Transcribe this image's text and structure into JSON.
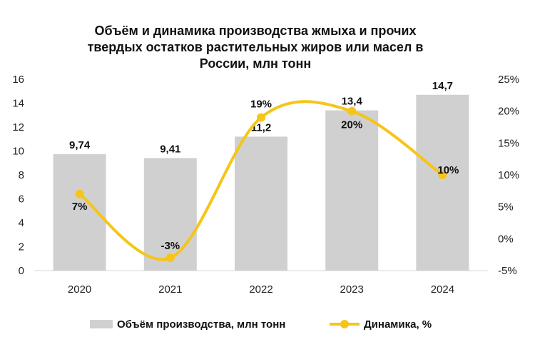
{
  "chart_data": {
    "type": "bar",
    "title_lines": [
      "Объём и динамика производства жмыха и прочих",
      "твердых остатков растительных жиров или масел в",
      "России, млн тонн"
    ],
    "categories": [
      "2020",
      "2021",
      "2022",
      "2023",
      "2024"
    ],
    "series": [
      {
        "name": "Объём производства, млн тонн",
        "type": "bar",
        "axis": "left",
        "values": [
          9.74,
          9.41,
          11.2,
          13.4,
          14.7
        ],
        "labels": [
          "9,74",
          "9,41",
          "11,2",
          "13,4",
          "14,7"
        ],
        "color": "#d0d0d0"
      },
      {
        "name": "Динамика, %",
        "type": "line",
        "axis": "right",
        "values": [
          7,
          -3,
          19,
          20,
          10
        ],
        "labels": [
          "7%",
          "-3%",
          "19%",
          "20%",
          "10%"
        ],
        "color": "#f5c518"
      }
    ],
    "y_left": {
      "min": 0,
      "max": 16,
      "ticks": [
        "0",
        "2",
        "4",
        "6",
        "8",
        "10",
        "12",
        "14",
        "16"
      ]
    },
    "y_right": {
      "min": -5,
      "max": 25,
      "ticks": [
        "-5%",
        "0%",
        "5%",
        "10%",
        "15%",
        "20%",
        "25%"
      ]
    },
    "grid": false,
    "legend_position": "bottom"
  }
}
